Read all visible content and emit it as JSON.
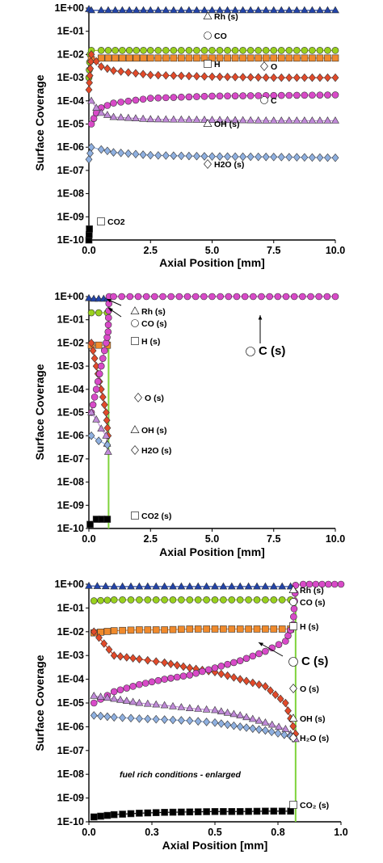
{
  "chart_data": [
    {
      "type": "scatter",
      "xlabel": "Axial Position [mm]",
      "ylabel": "Surface Coverage",
      "scale_y": "log",
      "xlim": [
        0,
        10
      ],
      "ylim": [
        1e-10,
        1
      ],
      "xticks": [
        "0.0",
        "2.5",
        "5.0",
        "7.5",
        "10.0"
      ],
      "yticks": [
        "1E-10",
        "1E-09",
        "1E-08",
        "1E-07",
        "1E-06",
        "1E-05",
        "1E-04",
        "1E-03",
        "1E-02",
        "1E-01",
        "1E+00"
      ],
      "series": [
        {
          "name": "Rh (s)",
          "marker": "triangle",
          "color": "#2244aa",
          "x": [
            0,
            0.1,
            0.5,
            2.5,
            5.0,
            7.5,
            10.0
          ],
          "y": [
            0.9,
            0.8,
            0.8,
            0.8,
            0.8,
            0.8,
            0.8
          ]
        },
        {
          "name": "CO",
          "marker": "circle",
          "color": "#99d11e",
          "x": [
            0,
            0.05,
            0.1,
            0.5,
            2.5,
            5.0,
            7.5,
            10.0
          ],
          "y": [
            0.001,
            0.01,
            0.015,
            0.015,
            0.015,
            0.015,
            0.015,
            0.015
          ]
        },
        {
          "name": "H",
          "marker": "square",
          "color": "#f08a2c",
          "x": [
            0.1,
            0.5,
            2.5,
            5.0,
            7.5,
            10.0
          ],
          "y": [
            0.006,
            0.007,
            0.007,
            0.007,
            0.007,
            0.007
          ]
        },
        {
          "name": "O",
          "marker": "diamond",
          "color": "#e24a2a",
          "x": [
            0,
            0.1,
            0.3,
            0.5,
            1.0,
            2.5,
            5.0,
            7.5,
            10.0
          ],
          "y": [
            0.0003,
            0.01,
            0.005,
            0.003,
            0.002,
            0.0013,
            0.0011,
            0.001,
            0.001
          ]
        },
        {
          "name": "C",
          "marker": "circle",
          "color": "#d84ac8",
          "x": [
            0.1,
            0.3,
            0.5,
            1.0,
            2.5,
            5.0,
            7.5,
            10.0
          ],
          "y": [
            1e-05,
            3e-05,
            5e-05,
            8e-05,
            0.00013,
            0.00016,
            0.00017,
            0.00018
          ]
        },
        {
          "name": "OH (s)",
          "marker": "triangle",
          "color": "#c08ad8",
          "x": [
            0.1,
            0.3,
            0.5,
            1.0,
            2.5,
            5.0,
            7.5,
            10.0
          ],
          "y": [
            0.0001,
            5e-05,
            3e-05,
            2e-05,
            1.6e-05,
            1.5e-05,
            1.4e-05,
            1.4e-05
          ]
        },
        {
          "name": "H2O (s)",
          "marker": "diamond",
          "color": "#8fb0e0",
          "x": [
            0,
            0.1,
            0.5,
            1.0,
            2.5,
            5.0,
            7.5,
            10.0
          ],
          "y": [
            3e-07,
            1e-06,
            8e-07,
            6e-07,
            4.5e-07,
            4e-07,
            3.8e-07,
            3.5e-07
          ]
        },
        {
          "name": "CO2",
          "marker": "square",
          "color": "#000000",
          "x": [
            0,
            0.02
          ],
          "y": [
            1e-10,
            3e-10
          ]
        }
      ],
      "annotations": [
        "Rh (s)",
        "CO",
        "H",
        "O",
        "C",
        "OH (s)",
        "H2O (s)",
        "CO2"
      ]
    },
    {
      "type": "scatter",
      "xlabel": "Axial Position [mm]",
      "ylabel": "Surface Coverage",
      "scale_y": "log",
      "xlim": [
        0,
        10
      ],
      "ylim": [
        1e-10,
        1
      ],
      "xticks": [
        "0.0",
        "2.5",
        "5.0",
        "7.5",
        "10.0"
      ],
      "yticks": [
        "1E-10",
        "1E-09",
        "1E-08",
        "1E-07",
        "1E-06",
        "1E-05",
        "1E-04",
        "1E-03",
        "1E-02",
        "1E-01",
        "1E+00"
      ],
      "series": [
        {
          "name": "Rh (s)",
          "marker": "triangle",
          "color": "#2244aa",
          "x": [
            0,
            0.2,
            0.4,
            0.6,
            0.75
          ],
          "y": [
            0.85,
            0.8,
            0.8,
            0.8,
            0.8
          ]
        },
        {
          "name": "CO (s)",
          "marker": "circle",
          "color": "#99d11e",
          "x": [
            0.1,
            0.4,
            0.75
          ],
          "y": [
            0.2,
            0.2,
            0.2
          ]
        },
        {
          "name": "H (s)",
          "marker": "square",
          "color": "#f08a2c",
          "x": [
            0.1,
            0.4,
            0.75
          ],
          "y": [
            0.008,
            0.008,
            0.008
          ]
        },
        {
          "name": "O (s)",
          "marker": "diamond",
          "color": "#e24a2a",
          "x": [
            0.1,
            0.3,
            0.5,
            0.7,
            0.78
          ],
          "y": [
            0.01,
            0.001,
            0.0001,
            1e-05,
            1e-06
          ]
        },
        {
          "name": "C (s)",
          "marker": "circle",
          "color": "#d84ac8",
          "x": [
            0.1,
            0.3,
            0.5,
            0.7,
            0.78,
            0.82,
            1.0,
            2.0,
            3.0,
            4.0,
            5.0,
            6.0,
            7.0,
            8.0,
            9.0,
            10.0
          ],
          "y": [
            1e-05,
            0.0001,
            0.001,
            0.01,
            0.03,
            1.0,
            1.0,
            1.0,
            1.0,
            1.0,
            1.0,
            1.0,
            1.0,
            1.0,
            1.0,
            1.0
          ]
        },
        {
          "name": "OH (s)",
          "marker": "triangle",
          "color": "#c08ad8",
          "x": [
            0.1,
            0.3,
            0.5,
            0.7,
            0.78
          ],
          "y": [
            1e-05,
            5e-06,
            2e-06,
            1e-06,
            2e-07
          ]
        },
        {
          "name": "H2O (s)",
          "marker": "diamond",
          "color": "#8fb0e0",
          "x": [
            0.1,
            0.4,
            0.75
          ],
          "y": [
            1e-06,
            6e-07,
            4e-07
          ]
        },
        {
          "name": "CO2 (s)",
          "marker": "square",
          "color": "#000000",
          "x": [
            0.05,
            0.3,
            0.75
          ],
          "y": [
            1.5e-10,
            2.5e-10,
            2.5e-10
          ]
        }
      ],
      "vline_x": 0.8,
      "annotations": [
        "Rh (s)",
        "CO (s)",
        "H (s)",
        "C (s)",
        "O (s)",
        "OH (s)",
        "H2O (s)",
        "CO2 (s)"
      ]
    },
    {
      "type": "scatter",
      "xlabel": "Axial Position [mm]",
      "ylabel": "Surface Coverage",
      "scale_y": "log",
      "xlim": [
        0,
        1.0
      ],
      "ylim": [
        1e-10,
        1
      ],
      "xticks": [
        "0.0",
        "0.3",
        "0.5",
        "0.8",
        "1.0"
      ],
      "yticks": [
        "1E-10",
        "1E-09",
        "1E-08",
        "1E-07",
        "1E-06",
        "1E-05",
        "1E-04",
        "1E-03",
        "1E-02",
        "1E-01",
        "1E+00"
      ],
      "series": [
        {
          "name": "Rh (s)",
          "marker": "triangle",
          "color": "#2244aa",
          "x": [
            0,
            0.1,
            0.2,
            0.3,
            0.4,
            0.5,
            0.6,
            0.7,
            0.8
          ],
          "y": [
            0.85,
            0.8,
            0.8,
            0.8,
            0.8,
            0.8,
            0.8,
            0.8,
            0.8
          ]
        },
        {
          "name": "CO (s)",
          "marker": "circle",
          "color": "#99d11e",
          "x": [
            0.02,
            0.1,
            0.2,
            0.3,
            0.4,
            0.5,
            0.6,
            0.7,
            0.8
          ],
          "y": [
            0.2,
            0.22,
            0.22,
            0.22,
            0.22,
            0.22,
            0.22,
            0.22,
            0.22
          ]
        },
        {
          "name": "H (s)",
          "marker": "square",
          "color": "#f08a2c",
          "x": [
            0.02,
            0.1,
            0.2,
            0.3,
            0.4,
            0.5,
            0.6,
            0.7,
            0.8
          ],
          "y": [
            0.009,
            0.011,
            0.012,
            0.012,
            0.013,
            0.013,
            0.013,
            0.013,
            0.013
          ]
        },
        {
          "name": "O (s)",
          "marker": "diamond",
          "color": "#e24a2a",
          "x": [
            0.02,
            0.1,
            0.2,
            0.3,
            0.4,
            0.5,
            0.6,
            0.7,
            0.78,
            0.82
          ],
          "y": [
            0.01,
            0.001,
            0.0007,
            0.0005,
            0.0003,
            0.0002,
            0.0001,
            5e-05,
            1e-05,
            5e-07
          ]
        },
        {
          "name": "C (s)",
          "marker": "circle",
          "color": "#d84ac8",
          "x": [
            0.02,
            0.1,
            0.2,
            0.3,
            0.4,
            0.5,
            0.6,
            0.7,
            0.78,
            0.81,
            0.82,
            0.85,
            0.9,
            0.95,
            1.0
          ],
          "y": [
            1e-05,
            3e-05,
            6e-05,
            0.0001,
            0.00015,
            0.0003,
            0.0006,
            0.0015,
            0.004,
            0.02,
            0.9,
            1.0,
            1.0,
            1.0,
            1.0
          ]
        },
        {
          "name": "OH (s)",
          "marker": "triangle",
          "color": "#c08ad8",
          "x": [
            0.02,
            0.1,
            0.2,
            0.3,
            0.4,
            0.5,
            0.6,
            0.7,
            0.78,
            0.82
          ],
          "y": [
            2e-05,
            1.5e-05,
            1e-05,
            8e-06,
            6e-06,
            5e-06,
            3e-06,
            1.5e-06,
            8e-07,
            3e-07
          ]
        },
        {
          "name": "H2O (s)",
          "marker": "diamond",
          "color": "#8fb0e0",
          "x": [
            0.02,
            0.1,
            0.2,
            0.3,
            0.4,
            0.5,
            0.6,
            0.7,
            0.8
          ],
          "y": [
            3e-06,
            2.5e-06,
            2.2e-06,
            2e-06,
            1.8e-06,
            1.5e-06,
            1e-06,
            7e-07,
            4e-07
          ]
        },
        {
          "name": "CO2 (s)",
          "marker": "square",
          "color": "#000000",
          "x": [
            0.02,
            0.1,
            0.2,
            0.3,
            0.4,
            0.5,
            0.6,
            0.7,
            0.8
          ],
          "y": [
            1.6e-10,
            2e-10,
            2.3e-10,
            2.5e-10,
            2.6e-10,
            2.7e-10,
            2.7e-10,
            2.8e-10,
            2.8e-10
          ]
        }
      ],
      "vline_x": 0.82,
      "annotations": [
        "Rh (s)",
        "CO (s)",
        "H (s)",
        "C (s)",
        "O (s)",
        "OH (s)",
        "H₂O (s)",
        "CO₂ (s)"
      ],
      "note": "fuel rich conditions - enlarged"
    }
  ]
}
